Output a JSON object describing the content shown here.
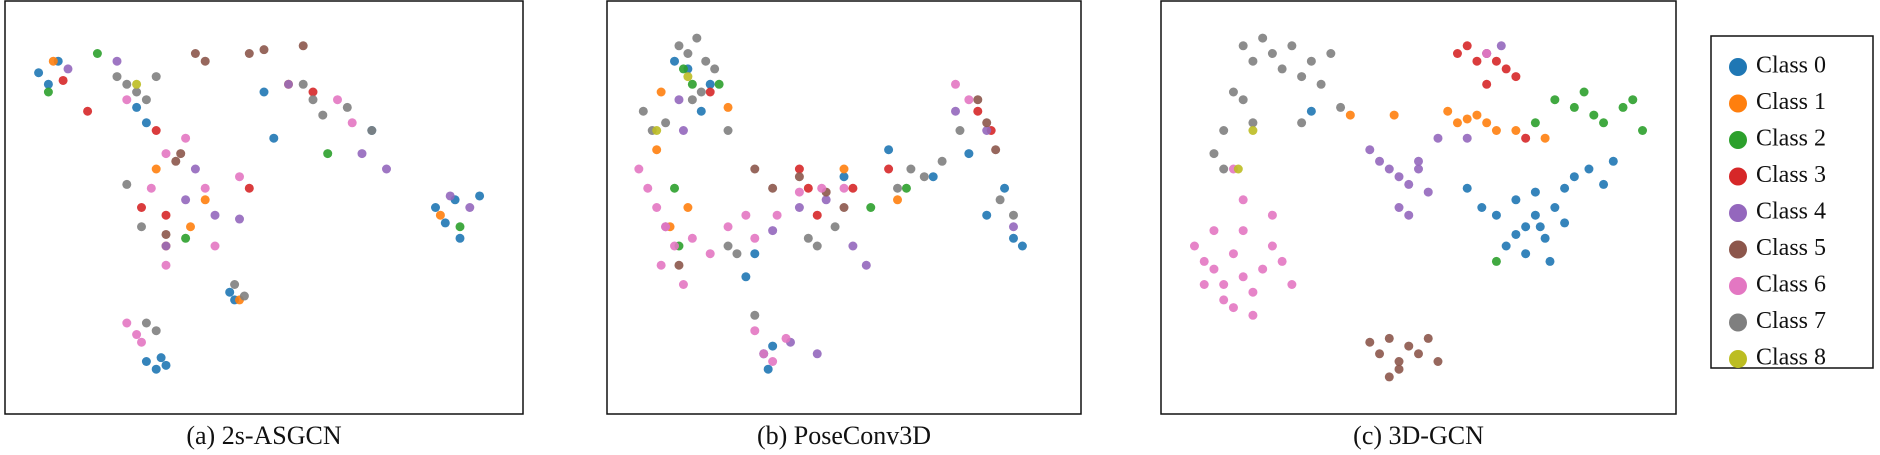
{
  "legend": {
    "entries": [
      {
        "name": "Class 0",
        "color": "#1f77b4"
      },
      {
        "name": "Class 1",
        "color": "#ff7f0e"
      },
      {
        "name": "Class 2",
        "color": "#2ca02c"
      },
      {
        "name": "Class 3",
        "color": "#d62728"
      },
      {
        "name": "Class 4",
        "color": "#9467bd"
      },
      {
        "name": "Class 5",
        "color": "#8c564b"
      },
      {
        "name": "Class 6",
        "color": "#e377c2"
      },
      {
        "name": "Class 7",
        "color": "#7f7f7f"
      },
      {
        "name": "Class 8",
        "color": "#bcbd22"
      }
    ]
  },
  "chart_data": [
    {
      "type": "scatter",
      "caption": "(a) 2s-ASGCN",
      "xlim": [
        0,
        100
      ],
      "ylim": [
        100,
        0
      ],
      "series": [
        {
          "x": [
            4,
            6,
            8,
            24,
            26,
            50,
            52,
            72,
            85,
            87,
            89,
            90,
            94,
            43,
            44,
            26,
            28,
            29,
            30
          ],
          "y": [
            15,
            18,
            12,
            24,
            28,
            20,
            32,
            30,
            50,
            54,
            48,
            58,
            47,
            72,
            74,
            90,
            92,
            89,
            91
          ]
        },
        {
          "x": [
            7,
            28,
            35,
            38,
            55,
            86,
            45,
            30
          ],
          "y": [
            12,
            40,
            55,
            48,
            18,
            52,
            74,
            60
          ]
        },
        {
          "x": [
            6,
            16,
            63,
            90,
            34
          ],
          "y": [
            20,
            10,
            36,
            55,
            58
          ]
        },
        {
          "x": [
            9,
            14,
            25,
            28,
            47,
            30,
            60
          ],
          "y": [
            17,
            25,
            50,
            30,
            45,
            52,
            20
          ]
        },
        {
          "x": [
            10,
            20,
            36,
            40,
            45,
            70,
            75,
            88,
            92,
            55,
            30,
            34
          ],
          "y": [
            14,
            12,
            40,
            52,
            53,
            36,
            40,
            47,
            50,
            18,
            60,
            48
          ]
        },
        {
          "x": [
            36,
            38,
            47,
            50,
            58,
            32,
            33,
            30
          ],
          "y": [
            10,
            12,
            10,
            9,
            8,
            38,
            36,
            57
          ]
        },
        {
          "x": [
            22,
            30,
            34,
            38,
            27,
            30,
            45,
            22,
            24,
            25,
            65,
            68,
            40
          ],
          "y": [
            22,
            36,
            32,
            45,
            45,
            65,
            42,
            80,
            83,
            85,
            22,
            28,
            60
          ]
        },
        {
          "x": [
            20,
            22,
            24,
            26,
            28,
            58,
            60,
            62,
            67,
            72,
            22,
            25,
            26,
            44,
            46,
            28
          ],
          "y": [
            16,
            18,
            20,
            22,
            16,
            18,
            22,
            26,
            24,
            30,
            44,
            55,
            80,
            70,
            73,
            82
          ]
        },
        {
          "x": [
            24
          ],
          "y": [
            18
          ]
        }
      ]
    },
    {
      "type": "scatter",
      "caption": "(b) PoseConv3D",
      "xlim": [
        0,
        100
      ],
      "ylim": [
        100,
        0
      ],
      "series": [
        {
          "x": [
            12,
            15,
            20,
            18,
            30,
            50,
            60,
            70,
            78,
            82,
            86,
            88,
            90,
            32,
            34,
            33,
            28
          ],
          "y": [
            12,
            14,
            18,
            25,
            62,
            42,
            35,
            42,
            36,
            52,
            45,
            58,
            60,
            88,
            86,
            92,
            68
          ]
        },
        {
          "x": [
            8,
            9,
            11,
            24,
            50,
            62,
            15
          ],
          "y": [
            35,
            20,
            55,
            24,
            40,
            48,
            50
          ]
        },
        {
          "x": [
            14,
            16,
            22,
            12,
            13,
            56,
            64
          ],
          "y": [
            14,
            18,
            18,
            45,
            60,
            50,
            45
          ]
        },
        {
          "x": [
            20,
            40,
            42,
            52,
            80,
            83,
            60,
            44
          ],
          "y": [
            20,
            40,
            45,
            45,
            25,
            30,
            40,
            52
          ]
        },
        {
          "x": [
            13,
            14,
            34,
            40,
            46,
            52,
            55,
            75,
            82,
            88,
            38,
            44,
            10
          ],
          "y": [
            22,
            30,
            56,
            50,
            48,
            60,
            65,
            25,
            30,
            55,
            85,
            88,
            55
          ]
        },
        {
          "x": [
            30,
            34,
            40,
            46,
            50,
            80,
            82,
            84,
            13
          ],
          "y": [
            40,
            45,
            42,
            46,
            50,
            22,
            28,
            35,
            65
          ]
        },
        {
          "x": [
            4,
            6,
            8,
            10,
            12,
            9,
            14,
            16,
            20,
            24,
            28,
            30,
            35,
            40,
            45,
            50,
            75,
            78,
            30,
            32,
            34,
            37
          ],
          "y": [
            40,
            45,
            50,
            55,
            60,
            65,
            70,
            58,
            62,
            55,
            52,
            58,
            52,
            46,
            45,
            45,
            18,
            22,
            82,
            88,
            90,
            84
          ]
        },
        {
          "x": [
            13,
            15,
            17,
            19,
            21,
            18,
            16,
            5,
            7,
            10,
            24,
            26,
            42,
            44,
            48,
            62,
            65,
            68,
            72,
            76,
            85,
            88,
            24,
            30
          ],
          "y": [
            8,
            10,
            6,
            12,
            14,
            20,
            22,
            25,
            30,
            28,
            60,
            62,
            58,
            60,
            55,
            45,
            40,
            42,
            38,
            30,
            48,
            52,
            30,
            78
          ]
        },
        {
          "x": [
            8,
            15
          ],
          "y": [
            30,
            16
          ]
        }
      ]
    },
    {
      "type": "scatter",
      "caption": "(c) 3D-GCN",
      "xlim": [
        0,
        100
      ],
      "ylim": [
        100,
        0
      ],
      "series": [
        {
          "x": [
            63,
            66,
            70,
            72,
            74,
            76,
            78,
            80,
            70,
            68,
            72,
            75,
            80,
            82,
            85,
            88,
            90,
            77,
            74,
            28,
            60
          ],
          "y": [
            50,
            52,
            48,
            55,
            52,
            58,
            50,
            54,
            57,
            60,
            62,
            55,
            45,
            42,
            40,
            44,
            38,
            64,
            46,
            25,
            45
          ]
        },
        {
          "x": [
            56,
            58,
            60,
            62,
            64,
            66,
            70,
            76,
            36,
            45
          ],
          "y": [
            25,
            28,
            27,
            26,
            28,
            30,
            30,
            32,
            26,
            26
          ]
        },
        {
          "x": [
            78,
            82,
            84,
            86,
            88,
            92,
            94,
            96,
            74,
            66
          ],
          "y": [
            22,
            24,
            20,
            26,
            28,
            24,
            22,
            30,
            28,
            64
          ]
        },
        {
          "x": [
            58,
            60,
            62,
            64,
            66,
            68,
            70,
            64,
            72
          ],
          "y": [
            10,
            8,
            12,
            10,
            12,
            14,
            16,
            18,
            32
          ]
        },
        {
          "x": [
            40,
            42,
            44,
            46,
            48,
            50,
            52,
            46,
            48,
            50,
            54,
            60,
            64,
            67
          ],
          "y": [
            35,
            38,
            40,
            42,
            44,
            40,
            46,
            50,
            52,
            38,
            32,
            32,
            10,
            8
          ]
        },
        {
          "x": [
            40,
            42,
            44,
            46,
            48,
            50,
            52,
            54,
            46,
            44
          ],
          "y": [
            85,
            88,
            84,
            90,
            86,
            88,
            84,
            90,
            92,
            94
          ]
        },
        {
          "x": [
            4,
            6,
            8,
            10,
            12,
            14,
            16,
            18,
            20,
            10,
            12,
            14,
            8,
            6,
            16,
            20,
            22,
            24,
            14,
            12,
            64
          ],
          "y": [
            60,
            64,
            66,
            70,
            62,
            68,
            72,
            66,
            60,
            74,
            76,
            56,
            56,
            70,
            78,
            52,
            64,
            70,
            48,
            40,
            10
          ]
        },
        {
          "x": [
            14,
            16,
            18,
            20,
            22,
            24,
            26,
            28,
            30,
            32,
            12,
            14,
            16,
            10,
            8,
            10,
            34,
            26
          ],
          "y": [
            8,
            12,
            6,
            10,
            14,
            8,
            16,
            12,
            18,
            10,
            20,
            22,
            28,
            30,
            36,
            40,
            24,
            28
          ]
        },
        {
          "x": [
            16,
            13
          ],
          "y": [
            30,
            40
          ]
        }
      ]
    }
  ]
}
